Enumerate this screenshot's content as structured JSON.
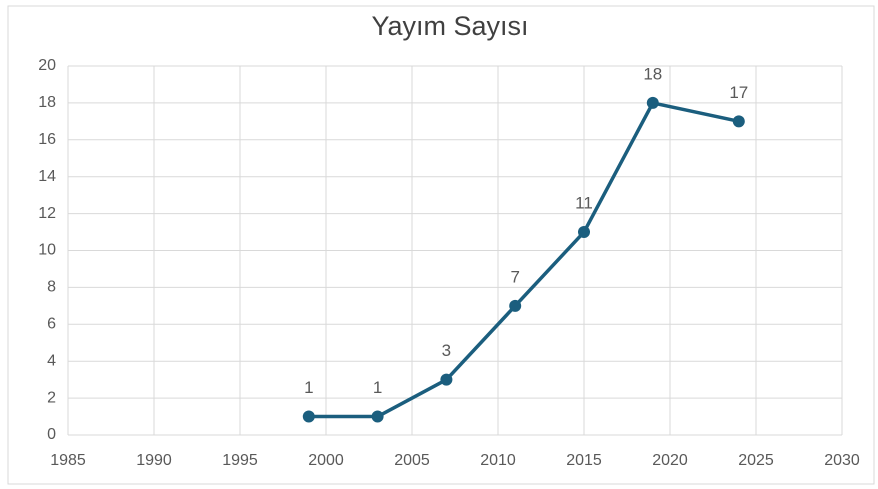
{
  "chart_data": {
    "type": "line",
    "title": "Yayım Sayısı",
    "x": [
      1999,
      2003,
      2007,
      2011,
      2015,
      2019,
      2024
    ],
    "values": [
      1,
      1,
      3,
      7,
      11,
      18,
      17
    ],
    "color": "#1b5e7e",
    "xlim": [
      1985,
      2030
    ],
    "xticks": [
      1985,
      1990,
      1995,
      2000,
      2005,
      2010,
      2015,
      2020,
      2025,
      2030
    ],
    "ylim": [
      0,
      20
    ],
    "yticks": [
      0,
      2,
      4,
      6,
      8,
      10,
      12,
      14,
      16,
      18,
      20
    ],
    "grid": true
  }
}
